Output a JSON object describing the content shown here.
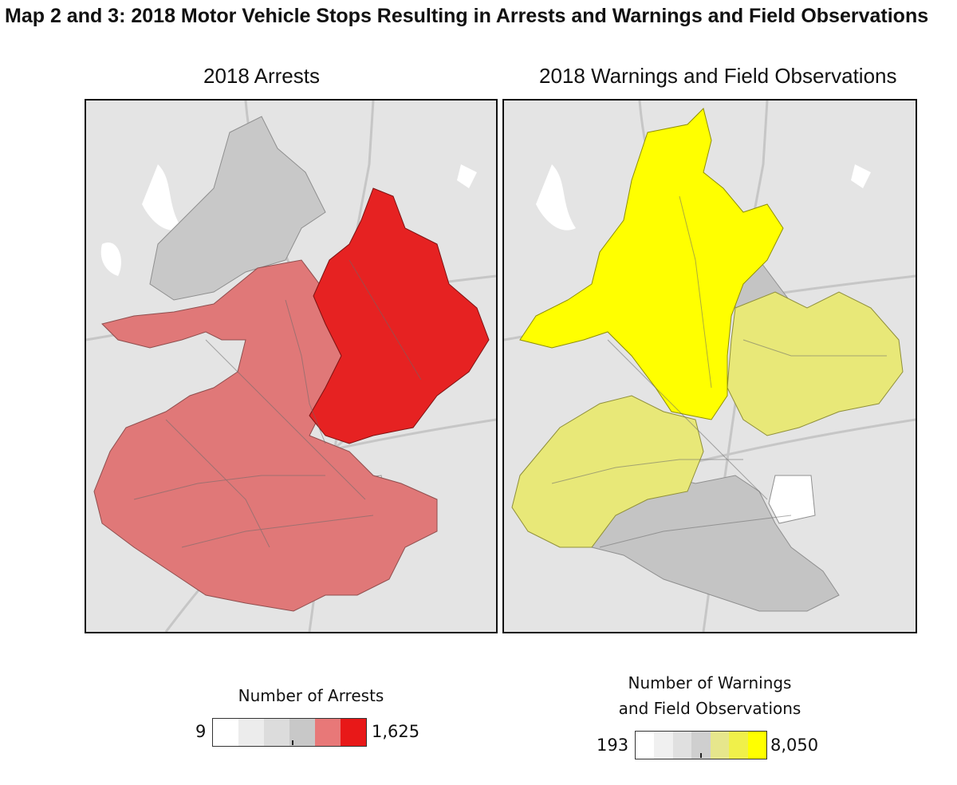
{
  "page": {
    "title": "Map 2 and 3: 2018 Motor Vehicle Stops Resulting in Arrests and Warnings and Field Observations"
  },
  "maps": [
    {
      "title": "2018 Arrests",
      "legend": {
        "title": "Number of Arrests",
        "min_label": "9",
        "max_label": "1,625",
        "colors": [
          "#ffffff",
          "#ececec",
          "#dcdcdc",
          "#c8c8c8",
          "#e87878",
          "#e81818"
        ]
      },
      "fill_high": "#e62222",
      "fill_mid": "#e07878",
      "fill_low": "#c8c8c8"
    },
    {
      "title": "2018 Warnings and Field Observations",
      "legend": {
        "title": "Number of Warnings and Field Observations",
        "title_line1": "Number of Warnings",
        "title_line2": "and Field Observations",
        "min_label": "193",
        "max_label": "8,050",
        "colors": [
          "#ffffff",
          "#f0f0f0",
          "#e0e0e0",
          "#cfcfcf",
          "#e6e68c",
          "#f0f04a",
          "#ffff00"
        ]
      },
      "fill_high": "#ffff00",
      "fill_mid": "#e8e878",
      "fill_low": "#c4c4c4"
    }
  ],
  "basemap": {
    "background": "#e4e4e4",
    "road_color": "#bdbdbd",
    "water_color": "#ffffff"
  }
}
